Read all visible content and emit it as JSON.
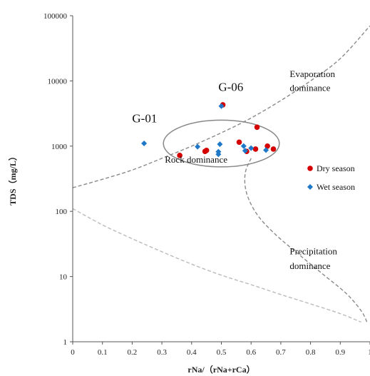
{
  "chart_data": {
    "type": "scatter",
    "title": "",
    "xlabel": "rNa/（rNa+rCa）",
    "ylabel": "TDS（mg/L）",
    "xlim": [
      0,
      1
    ],
    "ylim": [
      1,
      100000
    ],
    "y_scale": "log",
    "x_ticks": [
      "0",
      "0.1",
      "0.2",
      "0.3",
      "0.4",
      "0.5",
      "0.6",
      "0.7",
      "0.8",
      "0.9",
      "1"
    ],
    "y_ticks": [
      "1",
      "10",
      "100",
      "1000",
      "10000",
      "100000"
    ],
    "grid": false,
    "legend_position": "right",
    "series": [
      {
        "name": "Dry season",
        "color": "#d40000",
        "marker": "circle",
        "x": [
          0.36,
          0.445,
          0.45,
          0.505,
          0.56,
          0.585,
          0.615,
          0.62,
          0.655,
          0.675
        ],
        "y": [
          720,
          830,
          860,
          4300,
          1150,
          830,
          900,
          1950,
          1000,
          900
        ]
      },
      {
        "name": "Wet season",
        "color": "#1f77c8",
        "marker": "diamond",
        "x": [
          0.24,
          0.42,
          0.49,
          0.49,
          0.495,
          0.5,
          0.575,
          0.58,
          0.6,
          0.65
        ],
        "y": [
          1100,
          980,
          820,
          750,
          1070,
          4100,
          1000,
          850,
          930,
          870
        ]
      }
    ],
    "annotations": [
      {
        "text": "G-06",
        "x": 0.49,
        "y": 7000
      },
      {
        "text": "G-01",
        "x": 0.2,
        "y": 2300
      },
      {
        "text": "Evaporation",
        "x": 0.73,
        "y": 11500
      },
      {
        "text": "dominance",
        "x": 0.73,
        "y": 7000
      },
      {
        "text": "Rock dominance",
        "x": 0.31,
        "y": 560
      },
      {
        "text": "Precipitation",
        "x": 0.73,
        "y": 22
      },
      {
        "text": "dominance",
        "x": 0.73,
        "y": 13
      }
    ],
    "boundary_curves": [
      {
        "x": [
          0,
          0.1,
          0.2,
          0.3,
          0.4,
          0.5,
          0.6,
          0.7,
          0.8,
          0.9,
          1.0
        ],
        "y": [
          230,
          310,
          430,
          650,
          1000,
          1600,
          2700,
          5000,
          10000,
          22000,
          70000
        ]
      },
      {
        "x": [
          0.6,
          0.58,
          0.585,
          0.62,
          0.68,
          0.76,
          0.84,
          0.92,
          0.97,
          0.99
        ],
        "y": [
          650,
          380,
          190,
          90,
          45,
          22,
          11,
          5.5,
          3,
          2
        ]
      },
      {
        "x": [
          0,
          0.1,
          0.2,
          0.3,
          0.4,
          0.5,
          0.6,
          0.7,
          0.8,
          0.9,
          0.97
        ],
        "y": [
          110,
          62,
          38,
          24,
          15.5,
          10.5,
          7.5,
          5.3,
          3.8,
          2.7,
          2
        ]
      }
    ],
    "highlight_ellipse": {
      "cx": 0.5,
      "cy": 1100,
      "rx_data": 0.195,
      "y_top": 2500,
      "y_bottom": 480
    }
  }
}
